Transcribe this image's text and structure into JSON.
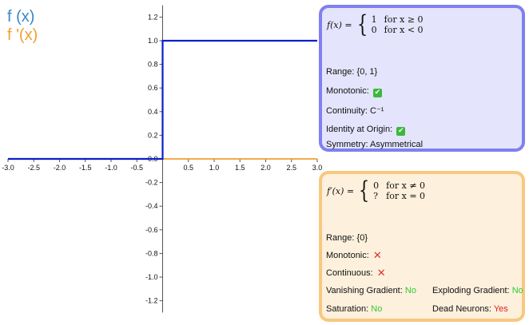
{
  "legend": {
    "f_label": "f (x)",
    "fp_label": "f '(x)",
    "f_color": "#3a86c8",
    "fp_color": "#f0a030"
  },
  "chart_data": {
    "type": "line",
    "xlim": [
      -3.0,
      3.0
    ],
    "ylim": [
      -1.3,
      1.3
    ],
    "x_ticks": [
      "-3.0",
      "-2.5",
      "-2.0",
      "-1.5",
      "-1.0",
      "-0.5",
      "0.5",
      "1.0",
      "1.5",
      "2.0",
      "2.5",
      "3.0"
    ],
    "y_ticks": [
      "1.2",
      "1.0",
      "0.8",
      "0.6",
      "0.4",
      "0.2",
      "0.0",
      "-0.2",
      "-0.4",
      "-0.6",
      "-0.8",
      "-1.0",
      "-1.2"
    ],
    "series": [
      {
        "name": "f (x)",
        "color": "#0a1fc8",
        "x": [
          -3.0,
          0.0,
          0.0,
          3.0
        ],
        "y": [
          0,
          0,
          1,
          1
        ]
      },
      {
        "name": "f '(x)",
        "color": "#f0a030",
        "x": [
          -3.0,
          3.0
        ],
        "y": [
          0,
          0
        ]
      }
    ]
  },
  "f_panel": {
    "border_color": "#8080f0",
    "bg_color": "#e4e4fc",
    "formula_lhs": "f(x) =",
    "case1_value": "1",
    "case1_cond": "for x ≥ 0",
    "case2_value": "0",
    "case2_cond": "for x < 0",
    "range": "Range: {0, 1}",
    "monotonic_label": "Monotonic:",
    "monotonic_icon": "check-mark",
    "continuity": "Continuity: C⁻¹",
    "identity_label": "Identity at Origin:",
    "identity_icon": "check-mark",
    "symmetry": "Symmetry: Asymmetrical"
  },
  "fp_panel": {
    "border_color": "#f8c880",
    "bg_color": "#fdf0dc",
    "formula_lhs": "f′(x) =",
    "case1_value": "0",
    "case1_cond": "for x ≠ 0",
    "case2_value": "?",
    "case2_cond": "for x = 0",
    "range": "Range: {0}",
    "monotonic_label": "Monotonic:",
    "monotonic_icon": "cross-mark",
    "continuous_label": "Continuous:",
    "continuous_icon": "cross-mark",
    "vanishing_label": "Vanishing Gradient:",
    "vanishing_value": "No",
    "exploding_label": "Exploding Gradient:",
    "exploding_value": "No",
    "saturation_label": "Saturation:",
    "saturation_value": "No",
    "dead_label": "Dead Neurons:",
    "dead_value": "Yes",
    "good_color": "#2ecc2e",
    "bad_color": "#e02020"
  }
}
